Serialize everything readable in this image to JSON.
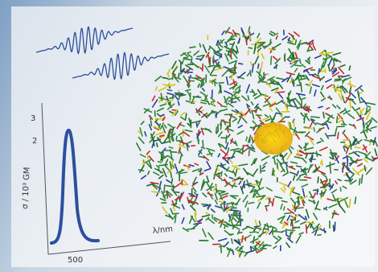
{
  "inset_plot": {
    "y_axis_label": "σ / 10³ GM",
    "x_axis_label": "λ/nm",
    "y_tick_labels": [
      "3",
      "2"
    ],
    "x_tick_labels": [
      "500"
    ]
  }
}
